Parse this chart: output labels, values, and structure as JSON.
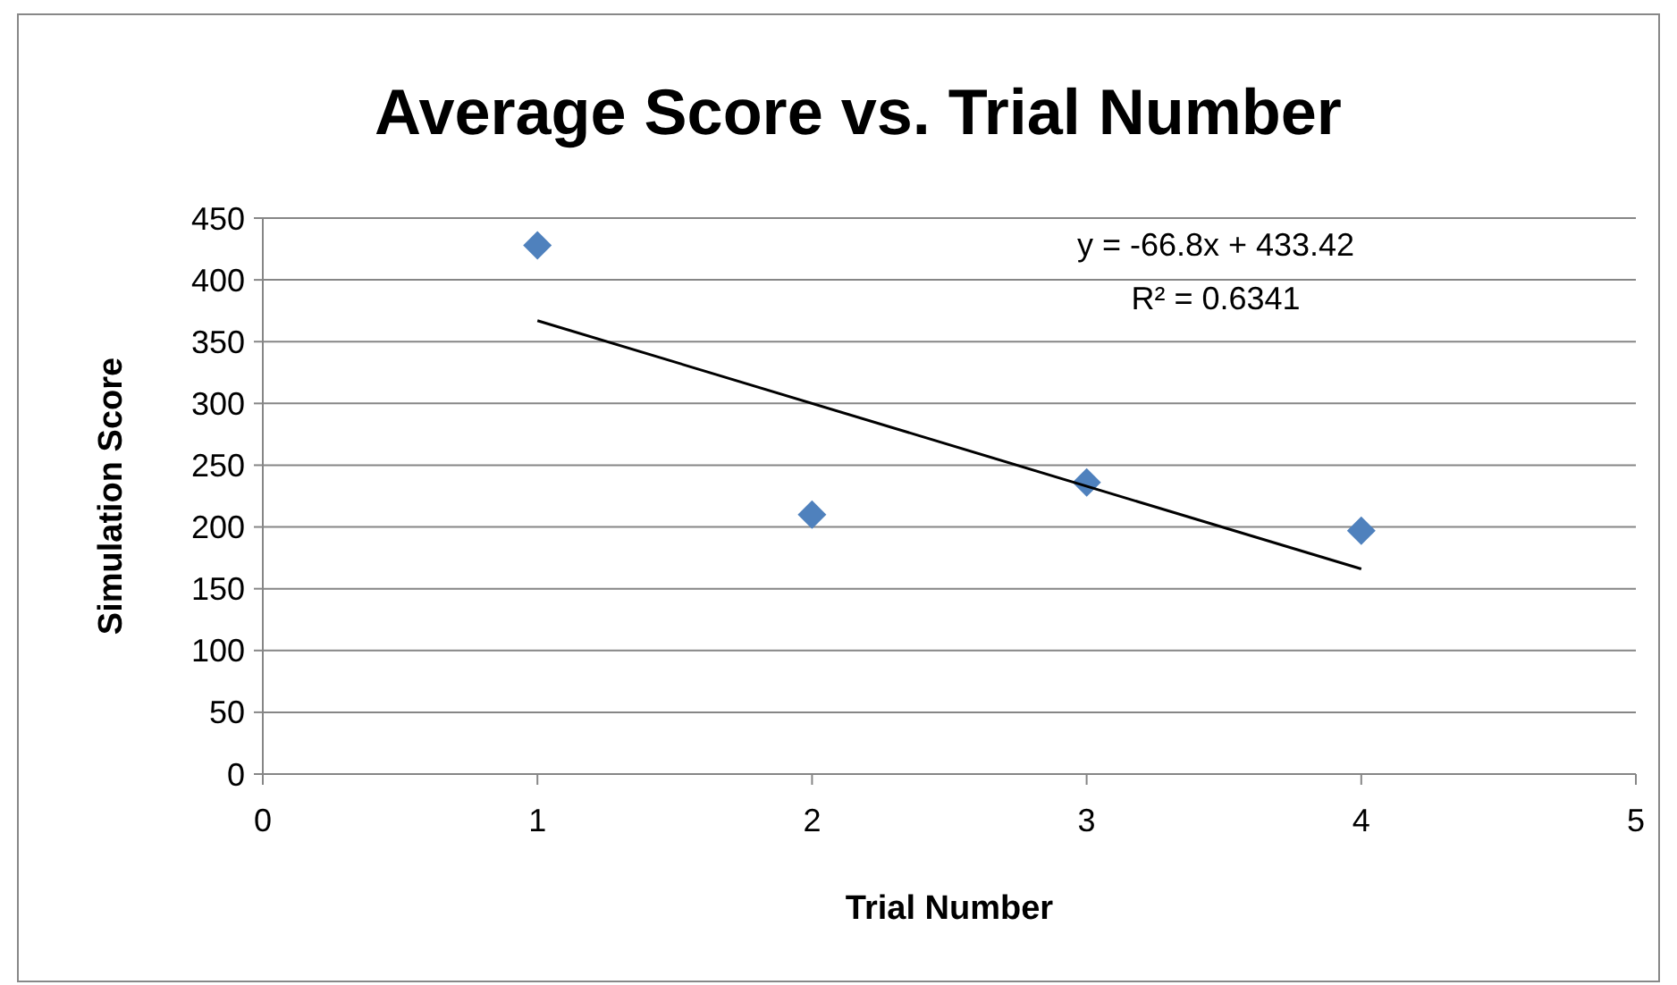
{
  "chart_data": {
    "type": "scatter",
    "title": "Average Score vs. Trial Number",
    "xlabel": "Trial Number",
    "ylabel": "Simulation Score",
    "x": [
      1,
      2,
      3,
      4
    ],
    "series": [
      {
        "color": "#4f81bd",
        "values": [
          428,
          210,
          236,
          197
        ],
        "marker": "diamond"
      },
      {
        "type": "line",
        "color": "#000000",
        "x": [
          1,
          4
        ],
        "values": [
          367,
          166
        ],
        "marker": "none",
        "line_style": "solid"
      }
    ],
    "xlim": [
      0,
      5
    ],
    "xticks": [
      0,
      1,
      2,
      3,
      4,
      5
    ],
    "ylim": [
      0,
      450
    ],
    "yticks": [
      0,
      50,
      100,
      150,
      200,
      250,
      300,
      350,
      400,
      450
    ],
    "grid": "y",
    "annotations": [
      "y = -66.8x + 433.42",
      "R² = 0.6341"
    ]
  }
}
